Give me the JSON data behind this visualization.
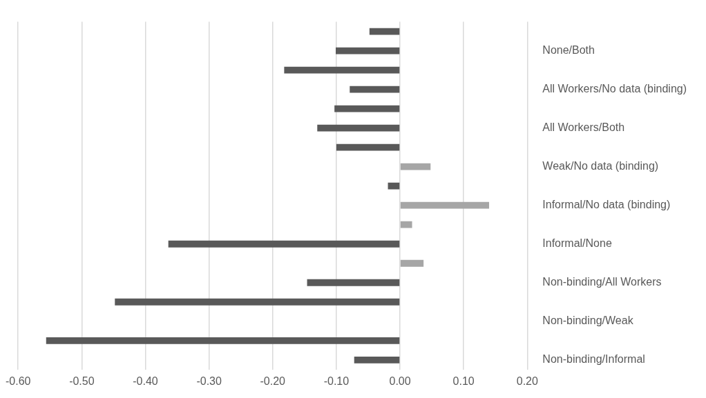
{
  "chart_data": {
    "type": "bar",
    "orientation": "horizontal",
    "categories": [
      null,
      "None/Both",
      null,
      "All Workers/No data (binding)",
      null,
      "All Workers/Both",
      null,
      "Weak/No data (binding)",
      null,
      "Informal/No data (binding)",
      null,
      "Informal/None",
      null,
      "Non-binding/All Workers",
      null,
      "Non-binding/Weak",
      null,
      "Non-binding/Informal"
    ],
    "values": [
      -0.048,
      -0.101,
      -0.182,
      -0.079,
      -0.103,
      -0.13,
      -0.1,
      0.048,
      -0.019,
      0.14,
      0.019,
      -0.364,
      0.037,
      -0.146,
      -0.448,
      null,
      -0.556,
      -0.072
    ],
    "colors": [
      "#595959",
      "#595959",
      "#595959",
      "#595959",
      "#595959",
      "#595959",
      "#595959",
      "#a6a6a6",
      "#595959",
      "#a6a6a6",
      "#a6a6a6",
      "#595959",
      "#a6a6a6",
      "#595959",
      "#595959",
      "#595959",
      "#595959",
      "#595959"
    ],
    "xlim": [
      -0.6,
      0.2
    ],
    "xticks": [
      {
        "value": -0.6,
        "label": "-0.60"
      },
      {
        "value": -0.5,
        "label": "-0.50"
      },
      {
        "value": -0.4,
        "label": "-0.40"
      },
      {
        "value": -0.3,
        "label": "-0.30"
      },
      {
        "value": -0.2,
        "label": "-0.20"
      },
      {
        "value": -0.1,
        "label": "-0.10"
      },
      {
        "value": 0,
        "label": "0.00"
      },
      {
        "value": 0.1,
        "label": "0.10"
      },
      {
        "value": 0.2,
        "label": "0.20"
      }
    ],
    "grid": "x",
    "legend": false
  }
}
